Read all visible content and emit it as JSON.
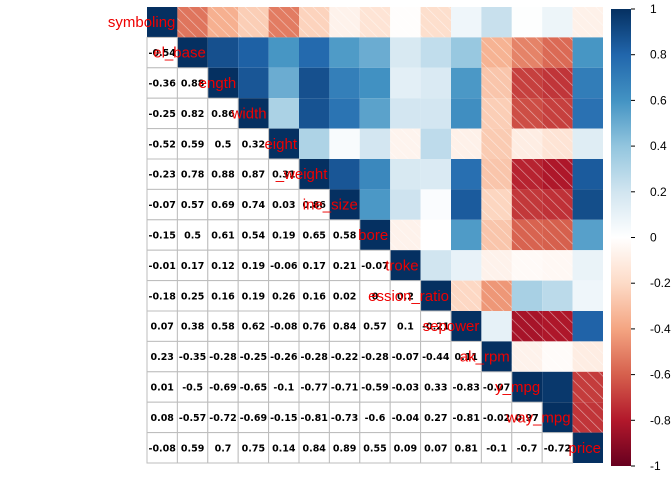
{
  "chart_data": {
    "type": "heatmap",
    "variables": [
      "symboling",
      "wheel_base",
      "car_length",
      "car_width",
      "car_height",
      "curb_weight",
      "engine_size",
      "bore",
      "stroke",
      "compression_ratio",
      "horsepower",
      "peak_rpm",
      "city_mpg",
      "highway_mpg",
      "price"
    ],
    "diagonal_labels": [
      "symboling",
      "el_base",
      "ength",
      "width",
      "eight",
      "_weight",
      "ine_size",
      "bore",
      "troke",
      "ession_ratio",
      "sepower",
      "ak_rpm",
      "y_mpg",
      "way_mpg",
      "price"
    ],
    "matrix": [
      [
        1,
        -0.54,
        -0.36,
        -0.25,
        -0.52,
        -0.23,
        -0.07,
        -0.15,
        -0.01,
        -0.18,
        0.07,
        0.23,
        0.01,
        0.08,
        -0.08
      ],
      [
        -0.54,
        1,
        0.88,
        0.82,
        0.59,
        0.78,
        0.57,
        0.5,
        0.17,
        0.25,
        0.38,
        -0.35,
        -0.5,
        -0.57,
        0.59
      ],
      [
        -0.36,
        0.88,
        1,
        0.86,
        0.5,
        0.88,
        0.69,
        0.61,
        0.12,
        0.16,
        0.58,
        -0.28,
        -0.69,
        -0.72,
        0.7
      ],
      [
        -0.25,
        0.82,
        0.86,
        1,
        0.32,
        0.87,
        0.74,
        0.54,
        0.19,
        0.19,
        0.62,
        -0.25,
        -0.65,
        -0.69,
        0.75
      ],
      [
        -0.52,
        0.59,
        0.5,
        0.32,
        1,
        0.31,
        0.03,
        0.19,
        -0.06,
        0.26,
        -0.08,
        -0.26,
        -0.1,
        -0.15,
        0.14
      ],
      [
        -0.23,
        0.78,
        0.88,
        0.87,
        0.31,
        1,
        0.86,
        0.65,
        0.17,
        0.16,
        0.76,
        -0.28,
        -0.77,
        -0.81,
        0.84
      ],
      [
        -0.07,
        0.57,
        0.69,
        0.74,
        0.03,
        0.86,
        1,
        0.58,
        0.21,
        0.02,
        0.84,
        -0.22,
        -0.71,
        -0.73,
        0.89
      ],
      [
        -0.15,
        0.5,
        0.61,
        0.54,
        0.19,
        0.65,
        0.58,
        1,
        -0.07,
        0,
        0.57,
        -0.28,
        -0.59,
        -0.6,
        0.55
      ],
      [
        -0.01,
        0.17,
        0.12,
        0.19,
        -0.06,
        0.17,
        0.21,
        -0.07,
        1,
        0.2,
        0.1,
        -0.07,
        -0.03,
        -0.04,
        0.09
      ],
      [
        -0.18,
        0.25,
        0.16,
        0.19,
        0.26,
        0.16,
        0.02,
        0,
        0.2,
        1,
        -0.21,
        -0.44,
        0.33,
        0.27,
        0.07
      ],
      [
        0.07,
        0.38,
        0.58,
        0.62,
        -0.08,
        0.76,
        0.84,
        0.57,
        0.1,
        -0.21,
        1,
        0.11,
        -0.83,
        -0.81,
        0.81
      ],
      [
        0.23,
        -0.35,
        -0.28,
        -0.25,
        -0.26,
        -0.28,
        -0.22,
        -0.28,
        -0.07,
        -0.44,
        0.11,
        1,
        -0.07,
        -0.02,
        -0.1
      ],
      [
        0.01,
        -0.5,
        -0.69,
        -0.65,
        -0.1,
        -0.77,
        -0.71,
        -0.59,
        -0.03,
        0.33,
        -0.83,
        -0.07,
        1,
        0.97,
        -0.7
      ],
      [
        0.08,
        -0.57,
        -0.72,
        -0.69,
        -0.15,
        -0.81,
        -0.73,
        -0.6,
        -0.04,
        0.27,
        -0.81,
        -0.02,
        0.97,
        1,
        -0.72
      ],
      [
        -0.08,
        0.59,
        0.7,
        0.75,
        0.14,
        0.84,
        0.89,
        0.55,
        0.09,
        0.07,
        0.81,
        -0.1,
        -0.7,
        -0.72,
        1
      ]
    ],
    "upper": "color",
    "lower": "number",
    "colorbar": {
      "ticks": [
        "1",
        "0.8",
        "0.6",
        "0.4",
        "0.2",
        "0",
        "-0.2",
        "-0.4",
        "-0.6",
        "-0.8",
        "-1"
      ],
      "range": [
        -1,
        1
      ],
      "colors": [
        "#67001f",
        "#b2182b",
        "#d6604d",
        "#f4a582",
        "#fddbc7",
        "#ffffff",
        "#d1e5f0",
        "#92c5de",
        "#4393c3",
        "#2166ac",
        "#053061"
      ]
    },
    "label_color": "#ee0000",
    "negative_pattern": "diagonal-hatch"
  }
}
